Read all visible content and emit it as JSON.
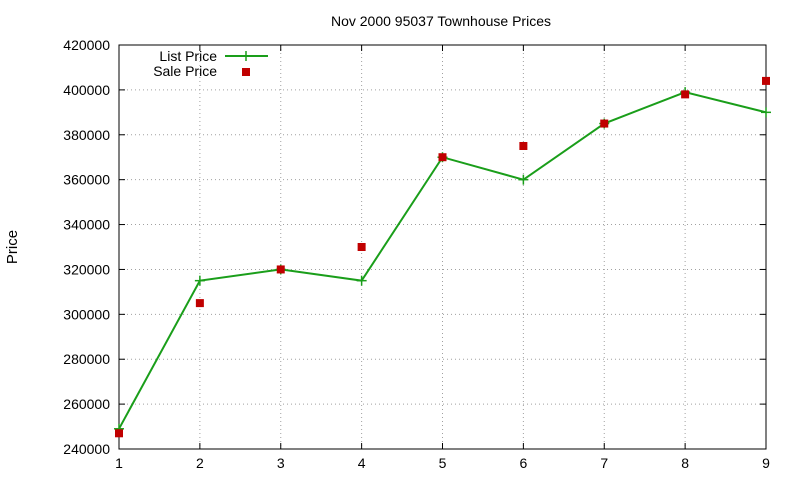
{
  "chart_data": {
    "type": "line",
    "title": "Nov 2000 95037 Townhouse Prices",
    "xlabel": "",
    "ylabel": "Price",
    "x": [
      1,
      2,
      3,
      4,
      5,
      6,
      7,
      8,
      9
    ],
    "xlim": [
      1,
      9
    ],
    "ylim": [
      240000,
      420000
    ],
    "yticks": [
      "240000",
      "260000",
      "280000",
      "300000",
      "320000",
      "340000",
      "360000",
      "380000",
      "400000",
      "420000"
    ],
    "xticks": [
      "1",
      "2",
      "3",
      "4",
      "5",
      "6",
      "7",
      "8",
      "9"
    ],
    "grid": true,
    "legend_position": "top-left",
    "series": [
      {
        "name": "List Price",
        "style": "line with plus markers",
        "color": "#1a9e1a",
        "values": [
          249000,
          315000,
          320000,
          315000,
          370000,
          360000,
          385000,
          399000,
          390000
        ]
      },
      {
        "name": "Sale Price",
        "style": "square points",
        "color": "#c00000",
        "values": [
          247000,
          305000,
          320000,
          330000,
          370000,
          375000,
          385000,
          398000,
          404000
        ]
      }
    ]
  }
}
